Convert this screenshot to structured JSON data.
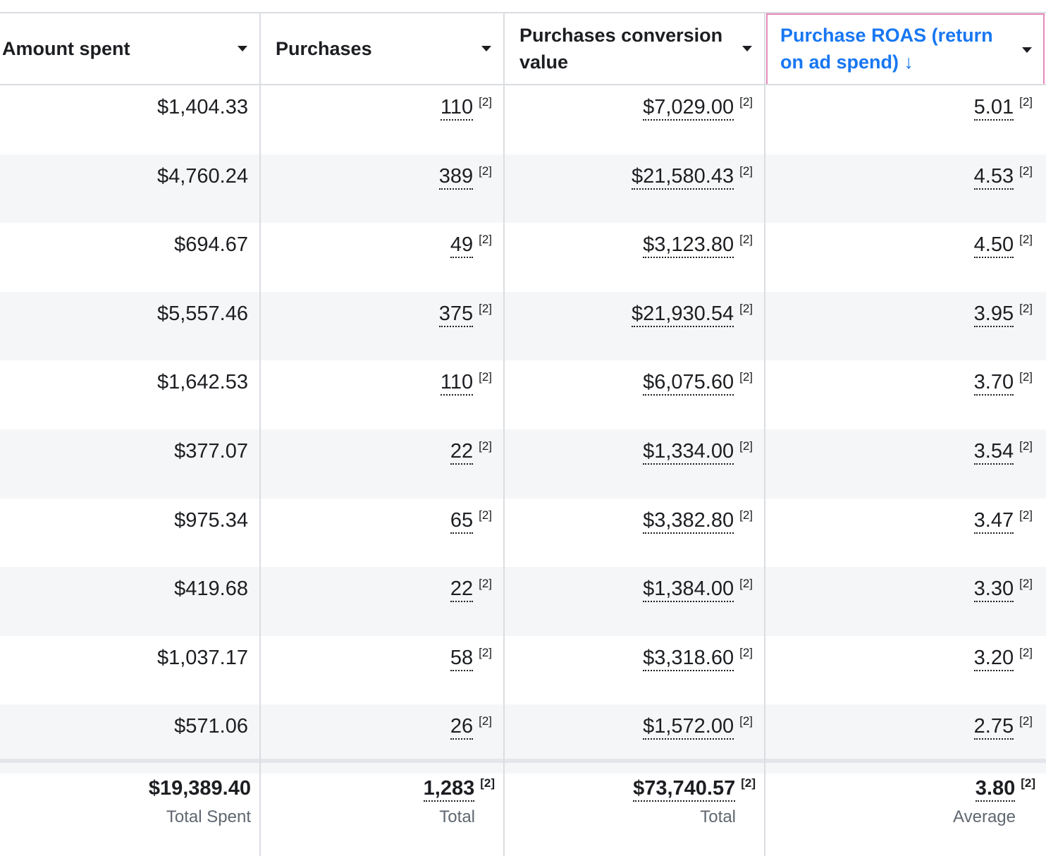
{
  "columns": [
    {
      "label": "Amount spent"
    },
    {
      "label": "Purchases"
    },
    {
      "label": "Purchases conversion value"
    },
    {
      "label": "Purchase ROAS (return on ad spend)",
      "sort_icon": "arrow-down-icon",
      "sort_glyph": "↓"
    }
  ],
  "attribution_note": "[2]",
  "rows": [
    {
      "spent": "$1,404.33",
      "purchases": "110",
      "value": "$7,029.00",
      "roas": "5.01"
    },
    {
      "spent": "$4,760.24",
      "purchases": "389",
      "value": "$21,580.43",
      "roas": "4.53"
    },
    {
      "spent": "$694.67",
      "purchases": "49",
      "value": "$3,123.80",
      "roas": "4.50"
    },
    {
      "spent": "$5,557.46",
      "purchases": "375",
      "value": "$21,930.54",
      "roas": "3.95"
    },
    {
      "spent": "$1,642.53",
      "purchases": "110",
      "value": "$6,075.60",
      "roas": "3.70"
    },
    {
      "spent": "$377.07",
      "purchases": "22",
      "value": "$1,334.00",
      "roas": "3.54"
    },
    {
      "spent": "$975.34",
      "purchases": "65",
      "value": "$3,382.80",
      "roas": "3.47"
    },
    {
      "spent": "$419.68",
      "purchases": "22",
      "value": "$1,384.00",
      "roas": "3.30"
    },
    {
      "spent": "$1,037.17",
      "purchases": "58",
      "value": "$3,318.60",
      "roas": "3.20"
    },
    {
      "spent": "$571.06",
      "purchases": "26",
      "value": "$1,572.00",
      "roas": "2.75"
    }
  ],
  "totals": {
    "spent": {
      "value": "$19,389.40",
      "caption": "Total Spent"
    },
    "purchases": {
      "value": "1,283",
      "caption": "Total"
    },
    "value": {
      "value": "$73,740.57",
      "caption": "Total"
    },
    "roas": {
      "value": "3.80",
      "caption": "Average"
    }
  },
  "colors": {
    "sort_accent": "#1877f2",
    "sort_border": "#e48ab8",
    "alt_row": "#f5f6f7"
  }
}
